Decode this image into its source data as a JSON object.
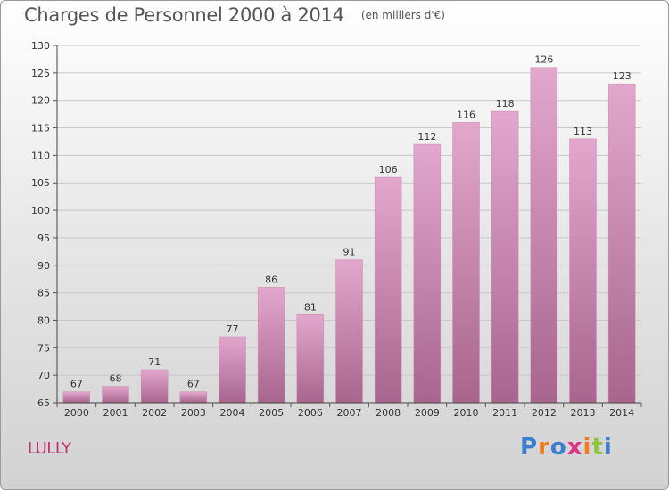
{
  "chart_data": {
    "type": "bar",
    "title": "Charges de Personnel 2000 à 2014",
    "subtitle": "(en milliers d'€)",
    "xlabel": "",
    "ylabel": "",
    "categories": [
      "2000",
      "2001",
      "2002",
      "2003",
      "2004",
      "2005",
      "2006",
      "2007",
      "2008",
      "2009",
      "2010",
      "2011",
      "2012",
      "2013",
      "2014"
    ],
    "values": [
      67,
      68,
      71,
      67,
      77,
      86,
      81,
      91,
      106,
      112,
      116,
      118,
      126,
      113,
      123
    ],
    "ylim": [
      65,
      130
    ],
    "yticks": [
      65,
      70,
      75,
      80,
      85,
      90,
      95,
      100,
      105,
      110,
      115,
      120,
      125,
      130
    ],
    "grid": true,
    "bar_color_top": "#e3a7cd",
    "bar_color_bottom": "#a8658e"
  },
  "commune": "LULLY",
  "logo": {
    "letters": [
      "P",
      "r",
      "o",
      "x",
      "i",
      "t",
      "i"
    ],
    "colors": [
      "#3a7fd0",
      "#f07c1f",
      "#3a7fd0",
      "#e0308a",
      "#f07c1f",
      "#8cc63f",
      "#3a7fd0"
    ]
  }
}
